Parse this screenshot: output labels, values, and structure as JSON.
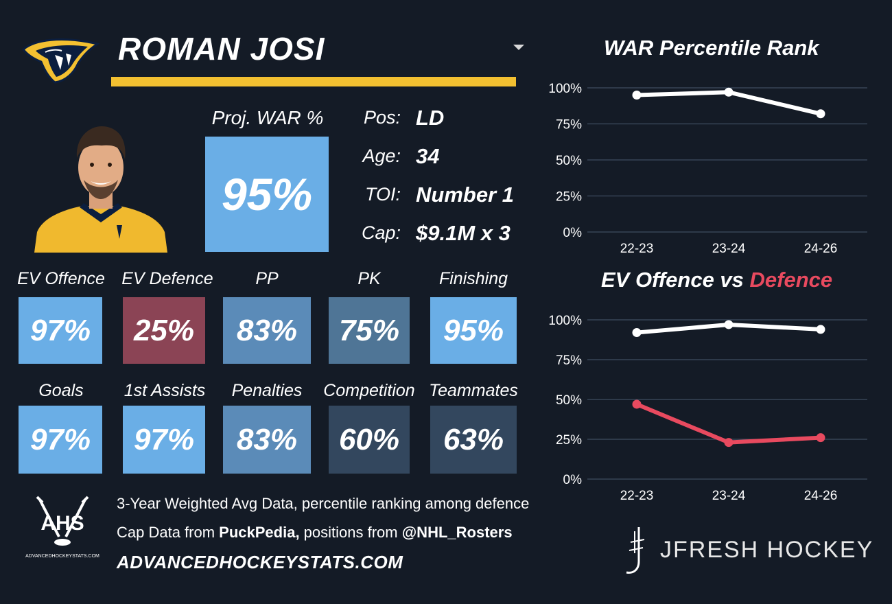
{
  "player": {
    "name": "ROMAN JOSI"
  },
  "projection": {
    "label": "Proj. WAR %",
    "value": "95%"
  },
  "info": [
    {
      "label": "Pos:",
      "value": "LD"
    },
    {
      "label": "Age:",
      "value": "34"
    },
    {
      "label": "TOI:",
      "value": "Number 1"
    },
    {
      "label": "Cap:",
      "value": "$9.1M x 3"
    }
  ],
  "tiles_row1": [
    {
      "label": "EV Offence",
      "value": "97%",
      "color": "#6aaee6"
    },
    {
      "label": "EV Defence",
      "value": "25%",
      "color": "#8b4455"
    },
    {
      "label": "PP",
      "value": "83%",
      "color": "#5b8bb8"
    },
    {
      "label": "PK",
      "value": "75%",
      "color": "#4f7596"
    },
    {
      "label": "Finishing",
      "value": "95%",
      "color": "#6aaee6"
    }
  ],
  "tiles_row2": [
    {
      "label": "Goals",
      "value": "97%",
      "color": "#6aaee6"
    },
    {
      "label": "1st Assists",
      "value": "97%",
      "color": "#6aaee6"
    },
    {
      "label": "Penalties",
      "value": "83%",
      "color": "#5b8bb8"
    },
    {
      "label": "Competition",
      "value": "60%",
      "color": "#33475e"
    },
    {
      "label": "Teammates",
      "value": "63%",
      "color": "#33475e"
    }
  ],
  "footer": {
    "line1": "3-Year Weighted Avg Data, percentile ranking among defence",
    "line2_prefix": "Cap Data from ",
    "line2_source": "PuckPedia,",
    "line2_mid": " positions from ",
    "line2_handle": "@NHL_Rosters",
    "site": "ADVANCEDHOCKEYSTATS.COM",
    "ahs_logo_text": "AHS",
    "ahs_logo_subtext": "ADVANCEDHOCKEYSTATS.COM",
    "brand": "JFRESH HOCKEY"
  },
  "colors": {
    "accent_gold": "#f3c031",
    "background": "#141b26",
    "offence_line": "#ffffff",
    "defence_line": "#e84a5f"
  },
  "chart_data": [
    {
      "type": "line",
      "title": "WAR Percentile Rank",
      "categories": [
        "22-23",
        "23-24",
        "24-26"
      ],
      "series": [
        {
          "values": [
            95,
            97,
            82
          ],
          "color": "#ffffff"
        }
      ],
      "ylim": [
        0,
        100
      ],
      "yticks": [
        "0%",
        "25%",
        "50%",
        "75%",
        "100%"
      ],
      "grid": true
    },
    {
      "type": "line",
      "title_parts": [
        "EV Offence vs ",
        "Defence"
      ],
      "categories": [
        "22-23",
        "23-24",
        "24-26"
      ],
      "series": [
        {
          "name": "EV Offence",
          "values": [
            92,
            97,
            94
          ],
          "color": "#ffffff"
        },
        {
          "name": "Defence",
          "values": [
            47,
            23,
            26
          ],
          "color": "#e84a5f"
        }
      ],
      "ylim": [
        0,
        100
      ],
      "yticks": [
        "0%",
        "25%",
        "50%",
        "75%",
        "100%"
      ],
      "grid": true
    }
  ]
}
